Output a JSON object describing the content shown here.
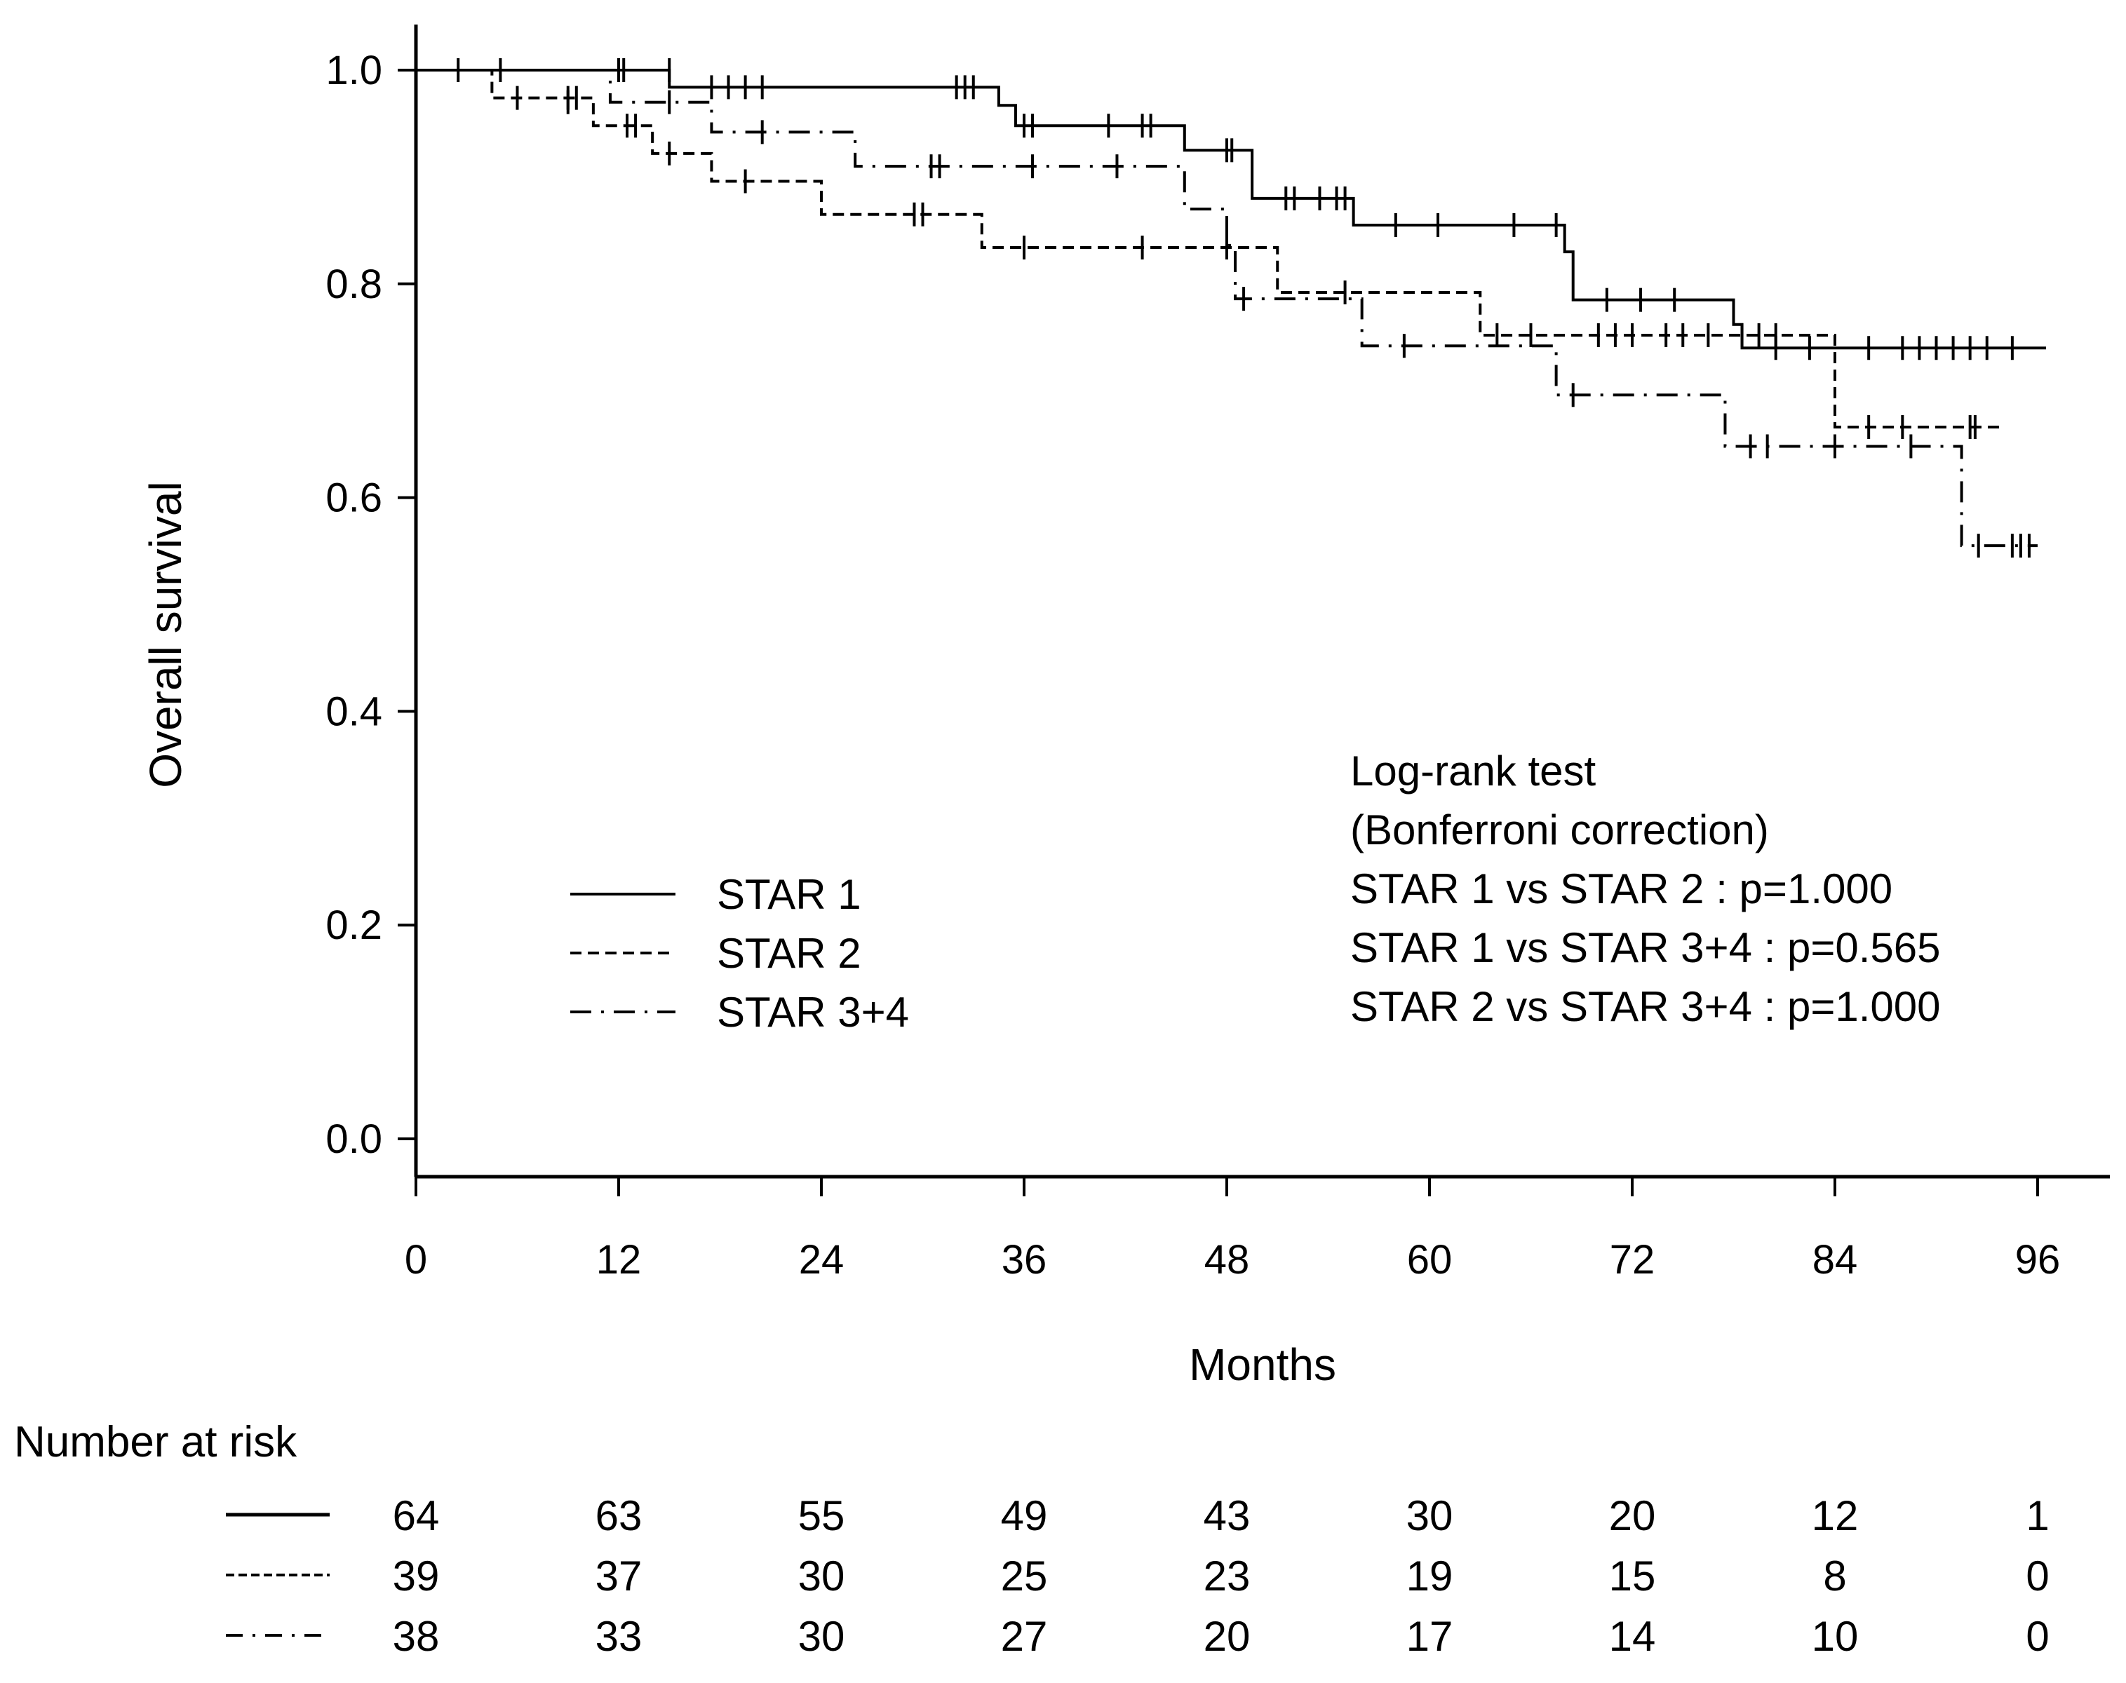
{
  "chart_data": {
    "type": "line",
    "subtype": "kaplan-meier",
    "xlabel": "Months",
    "ylabel": "Overall survival",
    "xlim": [
      0,
      96
    ],
    "ylim": [
      0,
      1
    ],
    "x_ticks": [
      0,
      12,
      24,
      36,
      48,
      60,
      72,
      84,
      96
    ],
    "x_tick_labels": [
      "0",
      "12",
      "24",
      "36",
      "48",
      "60",
      "72",
      "84",
      "96"
    ],
    "y_ticks": [
      0,
      0.2,
      0.4,
      0.6,
      0.8,
      1.0
    ],
    "y_tick_labels": [
      "0.0",
      "0.2",
      "0.4",
      "0.6",
      "0.8",
      "1.0"
    ],
    "grid": false,
    "legend": {
      "placement": "center-left",
      "entries": [
        {
          "label": "STAR 1",
          "style": "solid"
        },
        {
          "label": "STAR 2",
          "style": "dashed"
        },
        {
          "label": "STAR 3+4",
          "style": "dashdot"
        }
      ]
    },
    "annotation": [
      "Log-rank test",
      "(Bonferroni correction)",
      "STAR 1 vs STAR 2 : p=1.000",
      "STAR 1 vs STAR 3+4 : p=0.565",
      "STAR 2 vs STAR 3+4 : p=1.000"
    ],
    "series": [
      {
        "name": "STAR 1",
        "style": "solid",
        "end": 96.5,
        "steps": [
          [
            0,
            1.0
          ],
          [
            15,
            0.984
          ],
          [
            34.5,
            0.967
          ],
          [
            35.5,
            0.948
          ],
          [
            45.5,
            0.925
          ],
          [
            49.5,
            0.88
          ],
          [
            55.5,
            0.855
          ],
          [
            68,
            0.83
          ],
          [
            68.5,
            0.785
          ],
          [
            78,
            0.762
          ],
          [
            78.5,
            0.74
          ]
        ],
        "censored": [
          [
            2.5,
            1.0
          ],
          [
            5,
            1.0
          ],
          [
            12,
            1.0
          ],
          [
            12.3,
            1.0
          ],
          [
            15,
            1.0
          ],
          [
            17.5,
            0.984
          ],
          [
            18.5,
            0.984
          ],
          [
            19.5,
            0.984
          ],
          [
            20.5,
            0.984
          ],
          [
            32,
            0.984
          ],
          [
            32.5,
            0.984
          ],
          [
            33,
            0.984
          ],
          [
            36,
            0.948
          ],
          [
            36.5,
            0.948
          ],
          [
            41,
            0.948
          ],
          [
            43,
            0.948
          ],
          [
            43.5,
            0.948
          ],
          [
            48,
            0.925
          ],
          [
            48.3,
            0.925
          ],
          [
            51.5,
            0.88
          ],
          [
            52,
            0.88
          ],
          [
            53.5,
            0.88
          ],
          [
            54.5,
            0.88
          ],
          [
            55,
            0.88
          ],
          [
            58,
            0.855
          ],
          [
            60.5,
            0.855
          ],
          [
            65,
            0.855
          ],
          [
            67.5,
            0.855
          ],
          [
            70.5,
            0.785
          ],
          [
            72.5,
            0.785
          ],
          [
            74.5,
            0.785
          ],
          [
            80.5,
            0.74
          ],
          [
            82.5,
            0.74
          ],
          [
            86,
            0.74
          ],
          [
            88,
            0.74
          ],
          [
            89,
            0.74
          ],
          [
            90,
            0.74
          ],
          [
            91,
            0.74
          ],
          [
            92,
            0.74
          ],
          [
            93,
            0.74
          ],
          [
            94.5,
            0.74
          ]
        ]
      },
      {
        "name": "STAR 2",
        "style": "dashed",
        "end": 94,
        "steps": [
          [
            0,
            1.0
          ],
          [
            4.5,
            0.974
          ],
          [
            10.5,
            0.948
          ],
          [
            14,
            0.922
          ],
          [
            17.5,
            0.896
          ],
          [
            24,
            0.865
          ],
          [
            33.5,
            0.834
          ],
          [
            51,
            0.792
          ],
          [
            63,
            0.752
          ],
          [
            84,
            0.666
          ]
        ],
        "censored": [
          [
            6,
            0.974
          ],
          [
            9,
            0.974
          ],
          [
            9.5,
            0.974
          ],
          [
            12.5,
            0.948
          ],
          [
            13,
            0.948
          ],
          [
            15,
            0.922
          ],
          [
            19.5,
            0.896
          ],
          [
            29.5,
            0.865
          ],
          [
            30,
            0.865
          ],
          [
            36,
            0.834
          ],
          [
            43,
            0.834
          ],
          [
            48,
            0.834
          ],
          [
            55,
            0.792
          ],
          [
            64,
            0.752
          ],
          [
            66,
            0.752
          ],
          [
            70,
            0.752
          ],
          [
            71,
            0.752
          ],
          [
            72,
            0.752
          ],
          [
            74,
            0.752
          ],
          [
            75,
            0.752
          ],
          [
            76.5,
            0.752
          ],
          [
            78.5,
            0.752
          ],
          [
            79.5,
            0.752
          ],
          [
            80.5,
            0.752
          ],
          [
            86,
            0.666
          ],
          [
            88,
            0.666
          ],
          [
            92,
            0.666
          ],
          [
            92.3,
            0.666
          ]
        ]
      },
      {
        "name": "STAR 3+4",
        "style": "dashdot",
        "end": 96,
        "steps": [
          [
            0,
            1.0
          ],
          [
            11.5,
            0.97
          ],
          [
            17.5,
            0.942
          ],
          [
            26,
            0.91
          ],
          [
            45.5,
            0.87
          ],
          [
            48,
            0.836
          ],
          [
            48.5,
            0.786
          ],
          [
            56,
            0.742
          ],
          [
            67.5,
            0.696
          ],
          [
            77.5,
            0.648
          ],
          [
            91.5,
            0.555
          ]
        ],
        "censored": [
          [
            9,
            0.97
          ],
          [
            15,
            0.97
          ],
          [
            20.5,
            0.942
          ],
          [
            30.5,
            0.91
          ],
          [
            31,
            0.91
          ],
          [
            36.5,
            0.91
          ],
          [
            41.5,
            0.91
          ],
          [
            49,
            0.786
          ],
          [
            58.5,
            0.742
          ],
          [
            68.5,
            0.696
          ],
          [
            79,
            0.648
          ],
          [
            80,
            0.648
          ],
          [
            84,
            0.648
          ],
          [
            88.5,
            0.648
          ],
          [
            92.5,
            0.555
          ],
          [
            94.5,
            0.555
          ],
          [
            95,
            0.555
          ],
          [
            95.5,
            0.555
          ]
        ]
      }
    ],
    "risk_table": {
      "title": "Number at risk",
      "times": [
        0,
        12,
        24,
        36,
        48,
        60,
        72,
        84,
        96
      ],
      "rows": [
        {
          "style": "solid",
          "values": [
            "64",
            "63",
            "55",
            "49",
            "43",
            "30",
            "20",
            "12",
            "1"
          ]
        },
        {
          "style": "dashed",
          "values": [
            "39",
            "37",
            "30",
            "25",
            "23",
            "19",
            "15",
            "8",
            "0"
          ]
        },
        {
          "style": "dashdot",
          "values": [
            "38",
            "33",
            "30",
            "27",
            "20",
            "17",
            "14",
            "10",
            "0"
          ]
        }
      ]
    }
  }
}
